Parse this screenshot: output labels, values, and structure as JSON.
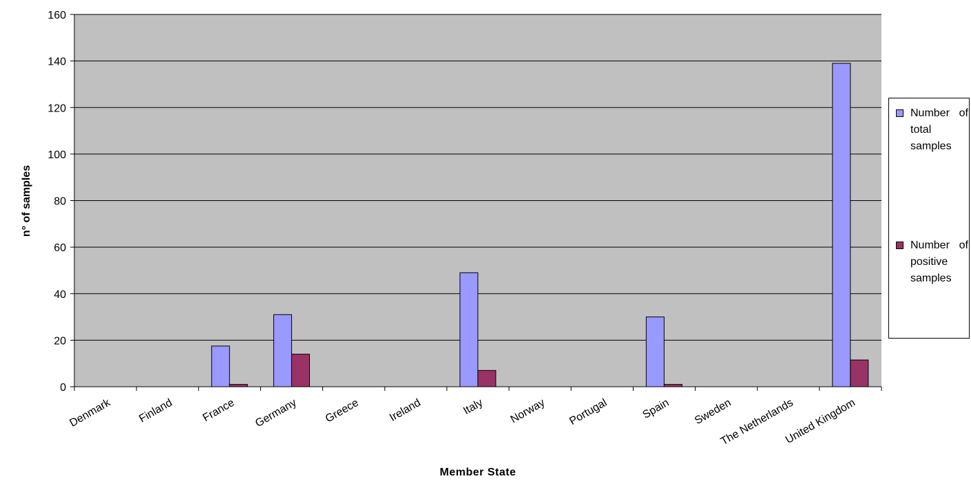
{
  "chart_data": {
    "type": "bar",
    "xlabel": "Member State",
    "ylabel": "n° of samples",
    "ylim": [
      0,
      160
    ],
    "yticks": [
      "0",
      "20",
      "40",
      "60",
      "80",
      "100",
      "120",
      "140",
      "160"
    ],
    "categories": [
      "Denmark",
      "Finland",
      "France",
      "Germany",
      "Greece",
      "Ireland",
      "Italy",
      "Norway",
      "Portugal",
      "Spain",
      "Sweden",
      "The Netherlands",
      "United Kingdom"
    ],
    "series": [
      {
        "name": "Number of total samples",
        "color": "#9999ff",
        "values": [
          0,
          0,
          17.5,
          31,
          0,
          0,
          49,
          0,
          0,
          30,
          0,
          0,
          139
        ]
      },
      {
        "name": "Number of positive samples",
        "color": "#993366",
        "values": [
          0,
          0,
          1,
          14,
          0,
          0,
          7,
          0,
          0,
          1,
          0,
          0,
          11.5
        ]
      }
    ],
    "grid": true,
    "plot_background": "#c0c0c0",
    "legend_position": "right"
  }
}
